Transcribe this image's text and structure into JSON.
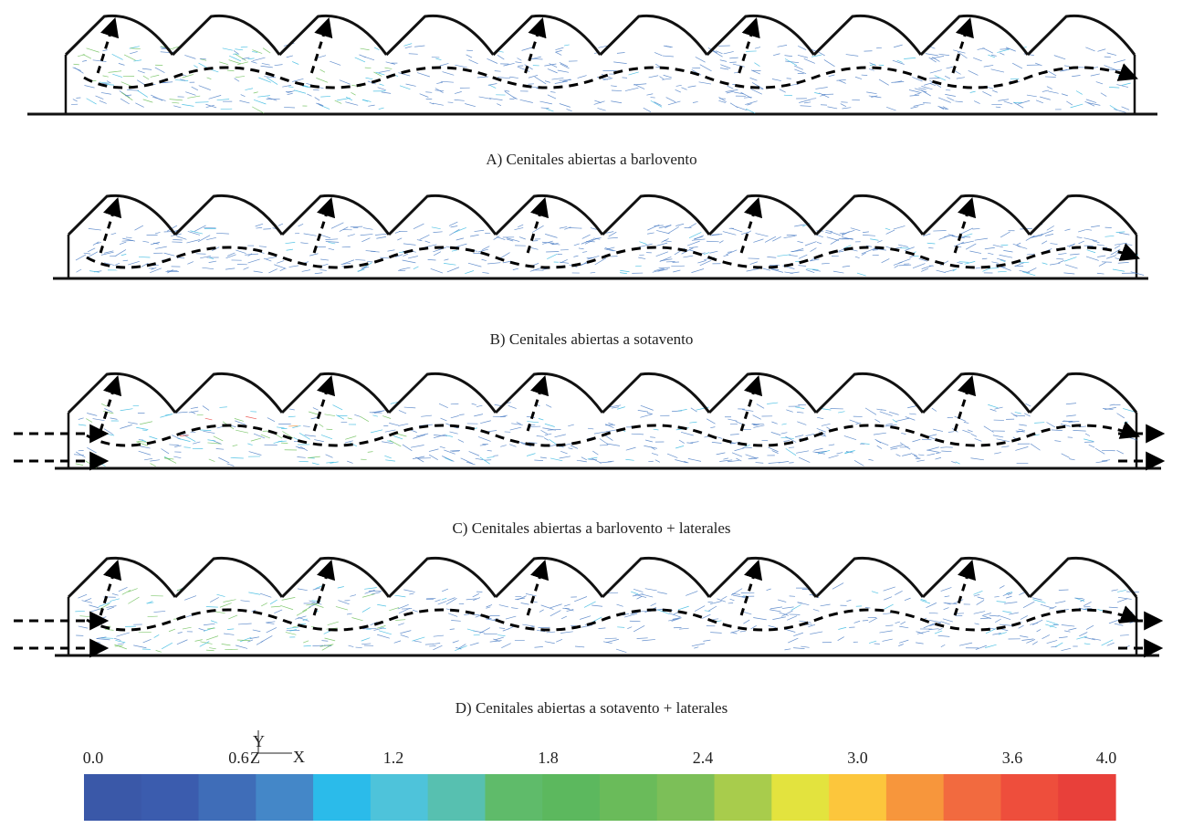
{
  "panels": [
    {
      "caption": "A) Cenitales abiertas a barlovento"
    },
    {
      "caption": "B) Cenitales abiertas a sotavento"
    },
    {
      "caption": "C) Cenitales abiertas a barlovento + laterales"
    },
    {
      "caption": "D) Cenitales abiertas a sotavento + laterales"
    }
  ],
  "axes": {
    "y": "Y",
    "z": "Z",
    "x": "X"
  },
  "colorbar": {
    "ticks": [
      "0.0",
      "0.6",
      "1.2",
      "1.8",
      "2.4",
      "3.0",
      "3.6",
      "4.0"
    ],
    "colors": [
      "#3a58a8",
      "#3b5cae",
      "#3f6db8",
      "#4487c8",
      "#2bbbea",
      "#4ec3da",
      "#57c0b0",
      "#5fbb6a",
      "#5cb85e",
      "#6abb5a",
      "#7cbf58",
      "#a8cc4c",
      "#e3e33e",
      "#fcc63c",
      "#f7963c",
      "#f26a3f",
      "#ee4e3c",
      "#e8403a"
    ]
  },
  "vector_colors": {
    "low": "#4a7cc4",
    "mid": "#34b8e0",
    "green": "#6cbf58",
    "orange": "#f0923c",
    "red": "#e8403a"
  }
}
